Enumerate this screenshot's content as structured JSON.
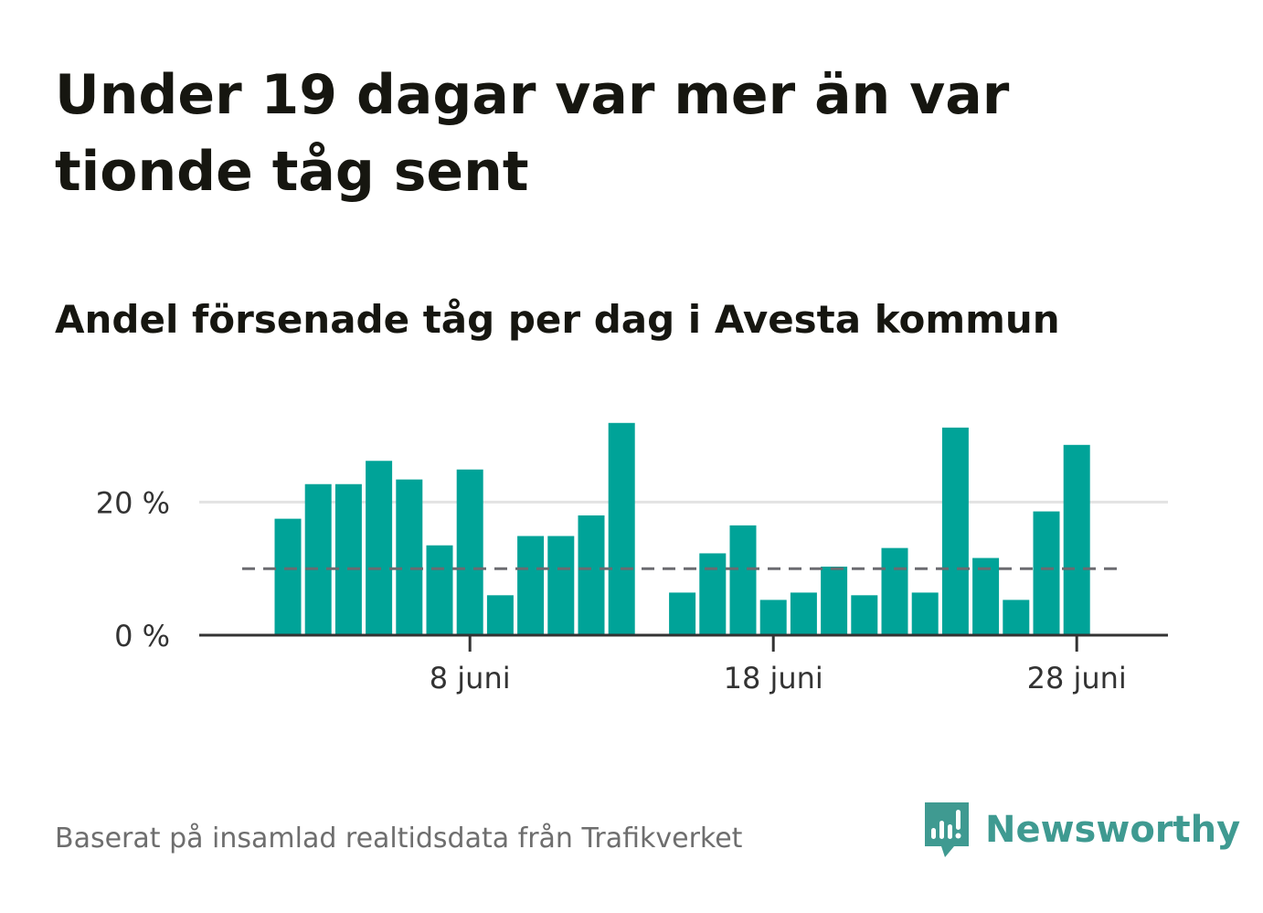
{
  "header": {
    "title": "Under 19 dagar var mer än var tionde tåg sent",
    "subtitle": "Andel försenade tåg per dag i Avesta kommun"
  },
  "footer": {
    "source": "Baserat på insamlad realtidsdata från Trafikverket",
    "logo_text": "Newsworthy"
  },
  "colors": {
    "bar": "#00a398",
    "reference_line": "#6b6b70",
    "grid": "#e3e3e3",
    "axis": "#333333",
    "logo": "#3f9a91"
  },
  "icons": {
    "logo": "newsworthy-logo-icon"
  },
  "chart_data": {
    "type": "bar",
    "x": [
      "2 juni",
      "3 juni",
      "4 juni",
      "5 juni",
      "6 juni",
      "7 juni",
      "8 juni",
      "9 juni",
      "10 juni",
      "11 juni",
      "12 juni",
      "13 juni",
      "14 juni",
      "15 juni",
      "16 juni",
      "17 juni",
      "18 juni",
      "19 juni",
      "20 juni",
      "21 juni",
      "22 juni",
      "23 juni",
      "24 juni",
      "25 juni",
      "26 juni",
      "27 juni",
      "28 juni",
      "29 juni",
      "30 juni"
    ],
    "values": [
      17.5,
      22.7,
      22.7,
      26.2,
      23.4,
      13.5,
      24.9,
      6.0,
      14.9,
      14.9,
      18.0,
      31.9,
      null,
      6.4,
      12.3,
      16.5,
      5.3,
      6.4,
      10.3,
      6.0,
      13.1,
      6.4,
      31.2,
      11.6,
      5.3,
      18.6,
      28.6,
      null,
      null
    ],
    "reference_line": 10,
    "ylim": [
      0,
      33
    ],
    "yticks": [
      0,
      20
    ],
    "ytick_labels": [
      "0 %",
      "20 %"
    ],
    "xticks": [
      "8 juni",
      "18 juni",
      "28 juni"
    ],
    "xlabel": "",
    "ylabel": "",
    "grid": true,
    "legend": "none"
  }
}
